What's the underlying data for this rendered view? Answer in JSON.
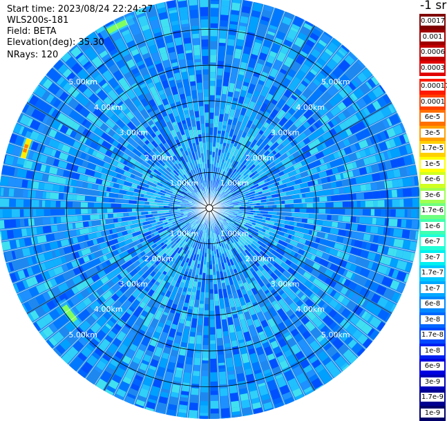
{
  "info": {
    "start_time": "Start time: 2023/08/24 22:24:27",
    "site": "WLS200s-181",
    "field": "Field: BETA",
    "elevation": "Elevation(deg): 35.30",
    "nrays": "NRays: 120"
  },
  "colorbar": {
    "title": "-1 sr",
    "levels": [
      {
        "label": "0.0017",
        "color": "#7f0000"
      },
      {
        "label": "0.001",
        "color": "#a00000"
      },
      {
        "label": "0.0006",
        "color": "#c00000"
      },
      {
        "label": "0.0003",
        "color": "#e00000"
      },
      {
        "label": "0.00017",
        "color": "#ff1a00"
      },
      {
        "label": "0.0001",
        "color": "#ff4000"
      },
      {
        "label": "6e-5",
        "color": "#ff7000"
      },
      {
        "label": "3e-5",
        "color": "#ffa000"
      },
      {
        "label": "1.7e-5",
        "color": "#ffd000"
      },
      {
        "label": "1e-5",
        "color": "#ffff00"
      },
      {
        "label": "6e-6",
        "color": "#d0ff20"
      },
      {
        "label": "3e-6",
        "color": "#a0ff50"
      },
      {
        "label": "1.7e-6",
        "color": "#70ff80"
      },
      {
        "label": "1e-6",
        "color": "#40ffb0"
      },
      {
        "label": "6e-7",
        "color": "#20ffd8"
      },
      {
        "label": "3e-7",
        "color": "#00f0f0"
      },
      {
        "label": "1.7e-7",
        "color": "#00c8ff"
      },
      {
        "label": "1e-7",
        "color": "#00a8ff"
      },
      {
        "label": "6e-8",
        "color": "#0088ff"
      },
      {
        "label": "3e-8",
        "color": "#0068ff"
      },
      {
        "label": "1.7e-8",
        "color": "#0048ff"
      },
      {
        "label": "1e-8",
        "color": "#0020f0"
      },
      {
        "label": "6e-9",
        "color": "#0000e0"
      },
      {
        "label": "3e-9",
        "color": "#0000b8"
      },
      {
        "label": "1.7e-9",
        "color": "#000090"
      },
      {
        "label": "1e-9",
        "color": "#000068"
      }
    ]
  },
  "chart_data": {
    "type": "heatmap",
    "projection": "polar PPI",
    "field": "BETA",
    "max_range_km": 5.9,
    "range_rings_km": [
      1,
      2,
      3,
      4,
      5
    ],
    "ring_labels": [
      "1.00km",
      "2.00km",
      "3.00km",
      "4.00km",
      "5.00km"
    ],
    "rays": 120,
    "dominant_value_range": [
      "1e-8",
      "1.7e-7"
    ],
    "hotspots": [
      {
        "azimuth_deg": 288,
        "range_km": 5.4,
        "value": "1e-5"
      },
      {
        "azimuth_deg": 333,
        "range_km": 5.7,
        "value": "3e-6"
      },
      {
        "azimuth_deg": 233,
        "range_km": 4.9,
        "value": "3e-6"
      }
    ],
    "colors": {
      "background": "#1e88e8",
      "ring": "#000000",
      "ray_gap": "#ffffff"
    }
  }
}
